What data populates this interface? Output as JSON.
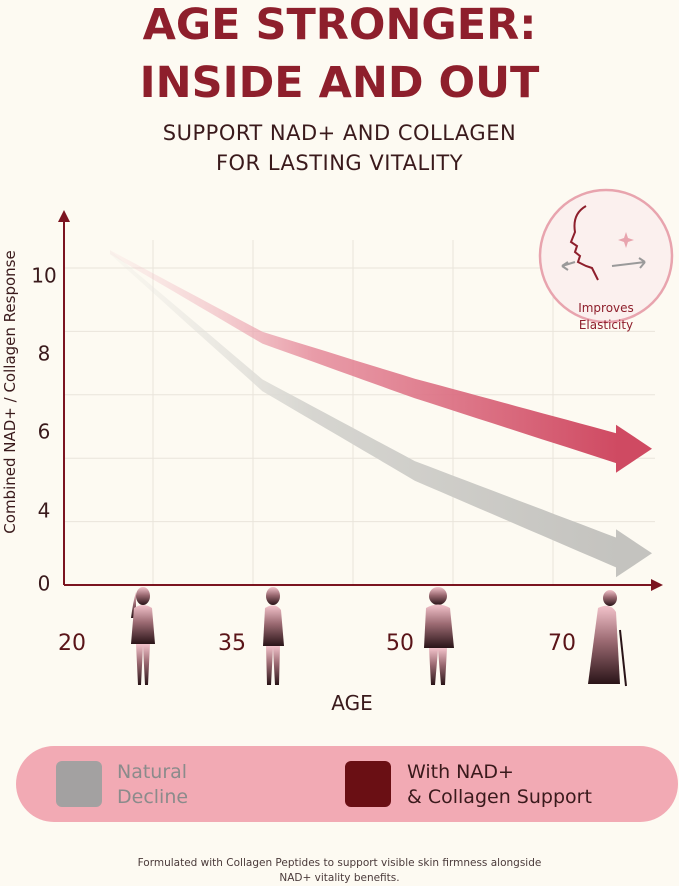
{
  "header": {
    "title_line1": "AGE STRONGER:",
    "title_line2": "INSIDE AND OUT",
    "subtitle_line1": "SUPPORT NAD+ AND COLLAGEN",
    "subtitle_line2": "FOR LASTING VITALITY"
  },
  "badge": {
    "line1": "Improves",
    "line2": "Elasticity",
    "icon": "face-profile-icon"
  },
  "chart_data": {
    "type": "line",
    "ylabel": "Combined NAD+ / Collagen Response",
    "xlabel": "AGE",
    "x_ticks": [
      "20",
      "35",
      "50",
      "70"
    ],
    "y_ticks": [
      "0",
      "4",
      "6",
      "8",
      "10"
    ],
    "ylim": [
      0,
      11
    ],
    "grid": true,
    "legend_placement": "bottom",
    "series": [
      {
        "name": "Natural Decline",
        "color": "#c9c8c4",
        "x": [
          20,
          35,
          50,
          70
        ],
        "y": [
          10.5,
          6.3,
          3.6,
          1.0
        ]
      },
      {
        "name": "With NAD+ & Collagen Support",
        "color": "#d04d63",
        "x": [
          20,
          35,
          50,
          70
        ],
        "y": [
          10.5,
          7.8,
          6.2,
          4.3
        ]
      }
    ]
  },
  "legend": {
    "natural_line1": "Natural",
    "natural_line2": "Decline",
    "support_line1": "With NAD+",
    "support_line2": "& Collagen Support",
    "natural_color": "#a3a1a1",
    "support_color": "#6a0f14",
    "background": "#f2aab4"
  },
  "footer": {
    "line1": "Formulated with Collagen Peptides to support visible skin firmness alongside",
    "line2": "NAD+ vitality benefits."
  }
}
